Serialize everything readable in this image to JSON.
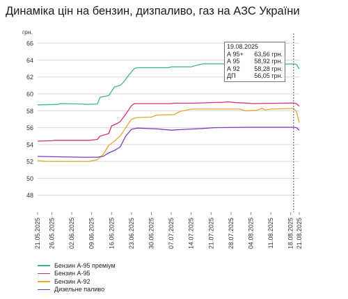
{
  "title": "Динаміка цін на бензин, дизпаливо, газ на АЗС України",
  "tooltip": {
    "date": "19.08.2025",
    "rows": [
      {
        "label": "А 95+",
        "value": "63,56 грн."
      },
      {
        "label": "А 95",
        "value": "58,92 грн."
      },
      {
        "label": "А 92",
        "value": "58,28 грн."
      },
      {
        "label": "ДП",
        "value": "56,05 грн."
      }
    ]
  },
  "chart_data": {
    "type": "line",
    "title": "Динаміка цін на бензин, дизпаливо, газ на АЗС України",
    "ylabel": "грн.",
    "ylim": [
      46,
      67
    ],
    "yticks": [
      48,
      50,
      52,
      54,
      56,
      58,
      60,
      62,
      64,
      66
    ],
    "grid": "horizontal",
    "legend_position": "bottom-left",
    "xticks": [
      "21.05.2025",
      "26.05.2025",
      "02.06.2025",
      "09.06.2025",
      "16.06.2025",
      "23.06.2025",
      "30.06.2025",
      "07.07.2025",
      "14.07.2025",
      "21.07.2025",
      "28.07.2025",
      "04.08.2025",
      "11.08.2025",
      "18.08.2025",
      "21.08.2025"
    ],
    "x_start": "21.05.2025",
    "x_end": "21.08.2025",
    "marker_date": "19.08.2025",
    "series": [
      {
        "name": "Бензин А-95 преміум",
        "color": "#3fb58f",
        "points": [
          [
            "21.05.2025",
            58.7
          ],
          [
            "28.05.2025",
            58.75
          ],
          [
            "29.05.2025",
            58.85
          ],
          [
            "06.06.2025",
            58.8
          ],
          [
            "07.06.2025",
            58.75
          ],
          [
            "11.06.2025",
            58.8
          ],
          [
            "12.06.2025",
            59.6
          ],
          [
            "15.06.2025",
            59.8
          ],
          [
            "17.06.2025",
            60.8
          ],
          [
            "19.06.2025",
            61.0
          ],
          [
            "20.06.2025",
            61.3
          ],
          [
            "22.06.2025",
            62.2
          ],
          [
            "24.06.2025",
            63.0
          ],
          [
            "25.06.2025",
            63.1
          ],
          [
            "06.07.2025",
            63.1
          ],
          [
            "07.07.2025",
            63.2
          ],
          [
            "14.07.2025",
            63.2
          ],
          [
            "16.07.2025",
            63.4
          ],
          [
            "18.07.2025",
            63.55
          ],
          [
            "09.08.2025",
            63.55
          ],
          [
            "10.08.2025",
            63.45
          ],
          [
            "19.08.2025",
            63.56
          ],
          [
            "20.08.2025",
            63.5
          ],
          [
            "21.08.2025",
            62.95
          ]
        ]
      },
      {
        "name": "Бензин А-95",
        "color": "#d4326a",
        "points": [
          [
            "21.05.2025",
            54.4
          ],
          [
            "26.05.2025",
            54.45
          ],
          [
            "27.05.2025",
            54.5
          ],
          [
            "08.06.2025",
            54.5
          ],
          [
            "11.06.2025",
            54.6
          ],
          [
            "12.06.2025",
            55.0
          ],
          [
            "15.06.2025",
            55.3
          ],
          [
            "16.06.2025",
            56.2
          ],
          [
            "18.06.2025",
            56.5
          ],
          [
            "19.06.2025",
            56.7
          ],
          [
            "21.06.2025",
            57.6
          ],
          [
            "23.06.2025",
            58.6
          ],
          [
            "24.06.2025",
            58.85
          ],
          [
            "07.07.2025",
            58.85
          ],
          [
            "08.07.2025",
            58.9
          ],
          [
            "15.07.2025",
            58.9
          ],
          [
            "25.07.2025",
            59.0
          ],
          [
            "27.07.2025",
            59.05
          ],
          [
            "30.07.2025",
            58.95
          ],
          [
            "03.08.2025",
            58.9
          ],
          [
            "05.08.2025",
            58.85
          ],
          [
            "19.08.2025",
            58.92
          ],
          [
            "20.08.2025",
            58.85
          ],
          [
            "21.08.2025",
            58.55
          ]
        ]
      },
      {
        "name": "Бензин А-92",
        "color": "#e0a632",
        "points": [
          [
            "21.05.2025",
            52.1
          ],
          [
            "24.05.2025",
            52.0
          ],
          [
            "08.06.2025",
            52.0
          ],
          [
            "11.06.2025",
            52.2
          ],
          [
            "13.06.2025",
            52.8
          ],
          [
            "15.06.2025",
            53.9
          ],
          [
            "17.06.2025",
            54.4
          ],
          [
            "19.06.2025",
            55.0
          ],
          [
            "21.06.2025",
            56.0
          ],
          [
            "23.06.2025",
            57.0
          ],
          [
            "25.06.2025",
            57.2
          ],
          [
            "30.06.2025",
            57.25
          ],
          [
            "02.07.2025",
            57.5
          ],
          [
            "08.07.2025",
            57.55
          ],
          [
            "10.07.2025",
            57.9
          ],
          [
            "14.07.2025",
            58.2
          ],
          [
            "31.07.2025",
            58.2
          ],
          [
            "02.08.2025",
            58.0
          ],
          [
            "06.08.2025",
            58.05
          ],
          [
            "08.08.2025",
            58.3
          ],
          [
            "09.08.2025",
            58.1
          ],
          [
            "11.08.2025",
            58.2
          ],
          [
            "19.08.2025",
            58.28
          ],
          [
            "20.08.2025",
            57.9
          ],
          [
            "21.08.2025",
            56.6
          ]
        ]
      },
      {
        "name": "Дизельне паливо",
        "color": "#7a3bbf",
        "points": [
          [
            "21.05.2025",
            52.6
          ],
          [
            "28.05.2025",
            52.55
          ],
          [
            "06.06.2025",
            52.5
          ],
          [
            "11.06.2025",
            52.5
          ],
          [
            "13.06.2025",
            52.6
          ],
          [
            "15.06.2025",
            53.0
          ],
          [
            "17.06.2025",
            53.3
          ],
          [
            "19.06.2025",
            53.7
          ],
          [
            "21.06.2025",
            55.0
          ],
          [
            "23.06.2025",
            55.8
          ],
          [
            "25.06.2025",
            55.95
          ],
          [
            "02.07.2025",
            55.85
          ],
          [
            "07.07.2025",
            55.7
          ],
          [
            "12.07.2025",
            55.8
          ],
          [
            "18.07.2025",
            55.9
          ],
          [
            "22.07.2025",
            56.0
          ],
          [
            "04.08.2025",
            56.05
          ],
          [
            "19.08.2025",
            56.05
          ],
          [
            "20.08.2025",
            56.0
          ],
          [
            "21.08.2025",
            55.7
          ]
        ]
      }
    ]
  }
}
